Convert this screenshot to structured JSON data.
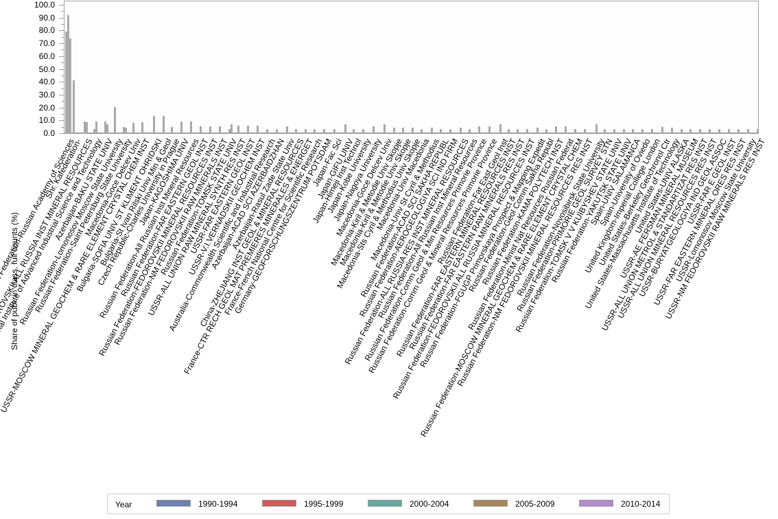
{
  "chart_data": {
    "type": "bar",
    "title": "",
    "xlabel": "",
    "ylabel": "Share of publ. in class, full counts (%)",
    "ylim": [
      0,
      100
    ],
    "yticks": [
      "0.0",
      "10.0",
      "20.0",
      "30.0",
      "40.0",
      "50.0",
      "60.0",
      "70.0",
      "80.0",
      "90.0",
      "100.0"
    ],
    "grid": false,
    "legend": {
      "title": "Year",
      "position": "bottom",
      "entries": [
        {
          "label": "1990-1994",
          "color": "#6f7fb3"
        },
        {
          "label": "1995-1999",
          "color": "#d05b5b"
        },
        {
          "label": "2000-2004",
          "color": "#67a89f"
        },
        {
          "label": "2005-2009",
          "color": "#a88660"
        },
        {
          "label": "2010-2014",
          "color": "#b68ccc"
        }
      ]
    },
    "bar_color_rendered": "#a8a8a8",
    "categories": [
      {
        "label": "Russian Federation-Russian Academy of Sciences",
        "x": 95,
        "bars": [
          79,
          92,
          74
        ]
      },
      {
        "label": "Shr. Kafederation-",
        "x": 106,
        "bars": [
          41
        ]
      },
      {
        "label": "Russian Federation-FEDOROVSKII ALL RUSSIA INST MINERAL RESOURCES",
        "x": 122,
        "bars": [
          9,
          8.5
        ]
      },
      {
        "label": "Japan-National Institute of Advanced Industrial Science and Technology",
        "x": 136,
        "bars": [
          3,
          9
        ]
      },
      {
        "label": "Azerbaijan-BAKU STATE UNIV",
        "x": 152,
        "bars": [
          9,
          7
        ]
      },
      {
        "label": "Russian Federation-Lomonosov Moscow State University",
        "x": 166,
        "bars": [
          20.5
        ]
      },
      {
        "label": "Russian Federation-Saint Petersburg State University",
        "x": 179,
        "bars": [
          5,
          4.5
        ]
      },
      {
        "label": "Macedonia-Goce Delcev Univ",
        "x": 193,
        "bars": [
          8
        ]
      },
      {
        "label": "USSR-MOSCOW MINERAL GEOCHEM & RARE ELEMENT CRYSTAL CHEM INST",
        "x": 206,
        "bars": [
          8.5
        ]
      },
      {
        "label": "Bulgaria-SOFIA UNIV ST KLIMENT OHRIDSKI",
        "x": 223,
        "bars": [
          13.5
        ]
      },
      {
        "label": "Bulgaria-St Ivan Rilski Univ Min & Geol",
        "x": 237,
        "bars": [
          13.5
        ]
      },
      {
        "label": "Czech Republic-Charles University in Prague",
        "x": 249,
        "bars": [
          5
        ]
      },
      {
        "label": "Japan-KAGOSHIMA UNIV",
        "x": 263,
        "bars": [
          9
        ]
      },
      {
        "label": "Russian Federation-All Russian Inst Mineral Resources",
        "x": 277,
        "bars": [
          9
        ]
      },
      {
        "label": "Russian Federation-FAR EASTERN GEOL INST",
        "x": 291,
        "bars": [
          5.5
        ]
      },
      {
        "label": "Russian Federation-FEDOROVSKII MINERAL RESOURCES INST",
        "x": 305,
        "bars": [
          5.5
        ]
      },
      {
        "label": "Russian Federation-NM FEDOROVSKII RAW MINERALS INST",
        "x": 319,
        "bars": [
          5.5
        ]
      },
      {
        "label": "Russian Federation-TOMSK STATE UNIV",
        "x": 333,
        "bars": [
          3,
          7
        ]
      },
      {
        "label": "USSR-ALL UNION RAW MINERAL SYNTH RES INST",
        "x": 346,
        "bars": [
          6
        ]
      },
      {
        "label": "USSR-FAR EASTERN GEOL INST",
        "x": 360,
        "bars": [
          6
        ]
      },
      {
        "label": "USSR-V.I.VERNADSKII GEOCHEM INST",
        "x": 374,
        "bars": [
          6
        ]
      },
      {
        "label": "Australia-Commonwealth Scientific and Industrial Research",
        "x": 388,
        "bars": [
          3
        ]
      },
      {
        "label": "Azerbaijan-ACAD SCI AZERBAIDZHAN",
        "x": 402,
        "bars": [
          3
        ]
      },
      {
        "label": "Azerbaijan-Rasul Zade State Univ",
        "x": 417,
        "bars": [
          5.5
        ]
      },
      {
        "label": "China-ZHEJIANG INST GEOL & MINERAL RESOURCES",
        "x": 430,
        "bars": [
          3
        ]
      },
      {
        "label": "France-CTR RECH GEOL MAT PREMIERES MINERALES & ENERGET",
        "x": 444,
        "bars": [
          3
        ]
      },
      {
        "label": "France-French National Centre for Scientific Research",
        "x": 457,
        "bars": [
          3
        ]
      },
      {
        "label": "Germany-GEOFORSCHUNGSZENTRUM POTSDAM",
        "x": 471,
        "bars": [
          3
        ]
      },
      {
        "label": "Japan-Fac Sci",
        "x": 486,
        "bars": [
          3
        ]
      },
      {
        "label": "Japan-GIFU UNIV",
        "x": 502,
        "bars": [
          7
        ]
      },
      {
        "label": "Japan-Himeji Inst Technol",
        "x": 514,
        "bars": [
          3
        ]
      },
      {
        "label": "Japan-Kobe University",
        "x": 528,
        "bars": [
          3
        ]
      },
      {
        "label": "Japan-Nagoya University",
        "x": 543,
        "bars": [
          5.5
        ]
      },
      {
        "label": "Macedonia-Goce Delcev Univ",
        "x": 559,
        "bars": [
          7
        ]
      },
      {
        "label": "Macedonia-Kiril & Metodie Univ Skopje",
        "x": 573,
        "bars": [
          4.5
        ]
      },
      {
        "label": "Macedonia-Kiril & Metodie Univ Skopje",
        "x": 586,
        "bars": [
          4.5
        ]
      },
      {
        "label": "Macedonia-Sts Cyril & Methodius Univ Skopje",
        "x": 600,
        "bars": [
          4.5
        ]
      },
      {
        "label": "Macedonia-Univ Macedonia",
        "x": 613,
        "bars": [
          3
        ]
      },
      {
        "label": "Macedonia-Univ St Cyril & Methodius",
        "x": 628,
        "bars": [
          4.5
        ]
      },
      {
        "label": "Russian Federation-ACAD SCI SAKHA REPUBL",
        "x": 641,
        "bars": [
          3
        ]
      },
      {
        "label": "Russian Federation-AEROGEOLOGIYA SCI IND FIRM",
        "x": 655,
        "bars": [
          3
        ]
      },
      {
        "label": "Russian Federation-ALL RUSSIA RES INST MINERAL RESOURCES",
        "x": 670,
        "bars": [
          4.5
        ]
      },
      {
        "label": "Russian Federation-All Russian Inst Mineral Resources",
        "x": 683,
        "bars": [
          3
        ]
      },
      {
        "label": "Russian Federation-Comm Geol & Min Resources Primorie Province",
        "x": 697,
        "bars": [
          5.5
        ]
      },
      {
        "label": "Russian Federation-Comm Geol & Mineral Resources Primorie Province",
        "x": 712,
        "bars": [
          5.5
        ]
      },
      {
        "label": "Russian Federation-Far East Geol Inst",
        "x": 728,
        "bars": [
          7
        ]
      },
      {
        "label": "Russian Federation-FAR EASTERN MINERAL RESOURCES INST",
        "x": 740,
        "bars": [
          3
        ]
      },
      {
        "label": "Russian Federation-FAR EASTERN RAW MINERALS RES INST",
        "x": 753,
        "bars": [
          3
        ]
      },
      {
        "label": "Russian Federation-FEDOROVSKII ALL RUSSIA MINERAL RESOURCES INST",
        "x": 767,
        "bars": [
          3
        ]
      },
      {
        "label": "Russian Federation-FGUGP Primorskaya Prospect & Mapping Expedit",
        "x": 782,
        "bars": [
          4.5
        ]
      },
      {
        "label": "Russian Federation-Geol Comm Sakha Republ",
        "x": 795,
        "bars": [
          3
        ]
      },
      {
        "label": "Russian Federation-KAMA POLYTECH INST",
        "x": 809,
        "bars": [
          5.5
        ]
      },
      {
        "label": "Russian Federation-Minist Nat Resources Russian Federat",
        "x": 823,
        "bars": [
          5.5
        ]
      },
      {
        "label": "Russian Federation-MOSCOW MINERAL GEOCHEM & RARE ELEMENT CRYSTAL CHEM",
        "x": 837,
        "bars": [
          3
        ]
      },
      {
        "label": "Russian Federation-NM FEDOROVSKII MINERAL RESOURCES RES INST",
        "x": 851,
        "bars": [
          3
        ]
      },
      {
        "label": "Russian Federation-Novosibirsk State University",
        "x": 868,
        "bars": [
          7
        ]
      },
      {
        "label": "Russian Federation-PRIMORIE GEOL SURVEY STN",
        "x": 880,
        "bars": [
          3
        ]
      },
      {
        "label": "Russian Federation-TOMSK V V KUIBYSHEV STATE UNIV",
        "x": 894,
        "bars": [
          3
        ]
      },
      {
        "label": "Russian Federation-YAKUTSK STATE UNIV",
        "x": 908,
        "bars": [
          3
        ]
      },
      {
        "label": "Spain-UNIV SALAMANCA",
        "x": 921,
        "bars": [
          3
        ]
      },
      {
        "label": "Spain-University of Oviedo",
        "x": 935,
        "bars": [
          3
        ]
      },
      {
        "label": "United Kingdom-Imperial College London",
        "x": 949,
        "bars": [
          3
        ]
      },
      {
        "label": "United States-Berkeley Geochronol Ctr",
        "x": 964,
        "bars": [
          5
        ]
      },
      {
        "label": "United States-Massachusetts Institute of Technology",
        "x": 978,
        "bars": [
          4.5
        ]
      },
      {
        "label": "United States-UNIV ALASKA",
        "x": 992,
        "bars": [
          3
        ]
      },
      {
        "label": "USSR-AE FERSMAN MINERAL MUSEUM",
        "x": 1005,
        "bars": [
          3
        ]
      },
      {
        "label": "USSR-ALL UNION METROL & STANDARTIZAT RES INST",
        "x": 1019,
        "bars": [
          3
        ]
      },
      {
        "label": "USSR-ALL UNION MINERAL RESOURCES RES INST",
        "x": 1033,
        "bars": [
          3
        ]
      },
      {
        "label": "USSR-BURYATGEOLOGIYA IND GEOL ASSOC",
        "x": 1047,
        "bars": [
          3
        ]
      },
      {
        "label": "USSR-FAR E GEOL INST",
        "x": 1061,
        "bars": [
          3
        ]
      },
      {
        "label": "USSR-FAR EASTERN MINERAL ORES RES INST",
        "x": 1075,
        "bars": [
          3
        ]
      },
      {
        "label": "USSR-Lomonosov Moscow State University",
        "x": 1089,
        "bars": [
          3
        ]
      },
      {
        "label": "USSR-NM FEDOROVSKII RAW MINERALS RES INST",
        "x": 1103,
        "bars": [
          3
        ]
      }
    ]
  }
}
